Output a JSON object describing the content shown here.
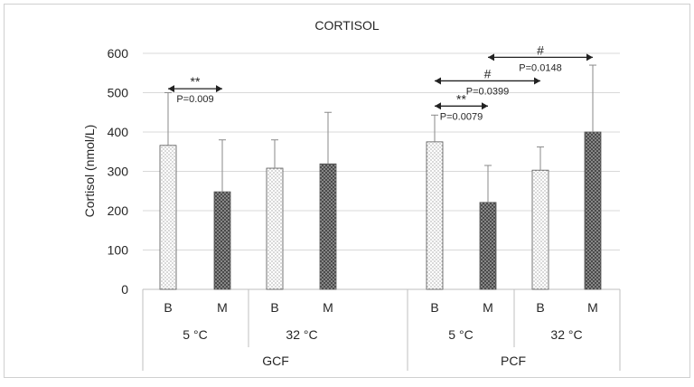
{
  "chart_data": {
    "type": "bar",
    "title": "CORTISOL",
    "xlabel": "",
    "ylabel": "Cortisol (nmol/L)",
    "ylim": [
      0,
      600
    ],
    "yticks": [
      "0",
      "100",
      "200",
      "300",
      "400",
      "500",
      "600"
    ],
    "grid": true,
    "categories": [
      "B",
      "M",
      "B",
      "M",
      "B",
      "M",
      "B",
      "M"
    ],
    "values": [
      366,
      248,
      308,
      319,
      375,
      221,
      303,
      400
    ],
    "error_upper": [
      500,
      380,
      380,
      450,
      443,
      315,
      362,
      570
    ],
    "fills": [
      "dots",
      "crosshatch",
      "dots",
      "crosshatch",
      "dots",
      "crosshatch",
      "dots",
      "crosshatch"
    ],
    "temperature_groups": [
      "5 °C",
      "32 °C",
      "5 °C",
      "32 °C"
    ],
    "site_groups": [
      "GCF",
      "PCF"
    ],
    "annotations": [
      {
        "stars": "**",
        "p": "P=0.009",
        "from_bar": 0,
        "to_bar": 1,
        "y": 510
      },
      {
        "stars": "**",
        "p": "P=0.0079",
        "from_bar": 4,
        "to_bar": 5,
        "y": 466
      },
      {
        "stars": "#",
        "p": "P=0.0399",
        "from_bar": 4,
        "to_bar": 6,
        "y": 530
      },
      {
        "stars": "#",
        "p": "P=0.0148",
        "from_bar": 5,
        "to_bar": 7,
        "y": 590
      }
    ]
  },
  "colors": {
    "grid": "#d9d9d9",
    "axis": "#bfbfbf",
    "text": "#262626",
    "bar_outline": "#555555",
    "dark_fill": "#4a4a4a"
  }
}
